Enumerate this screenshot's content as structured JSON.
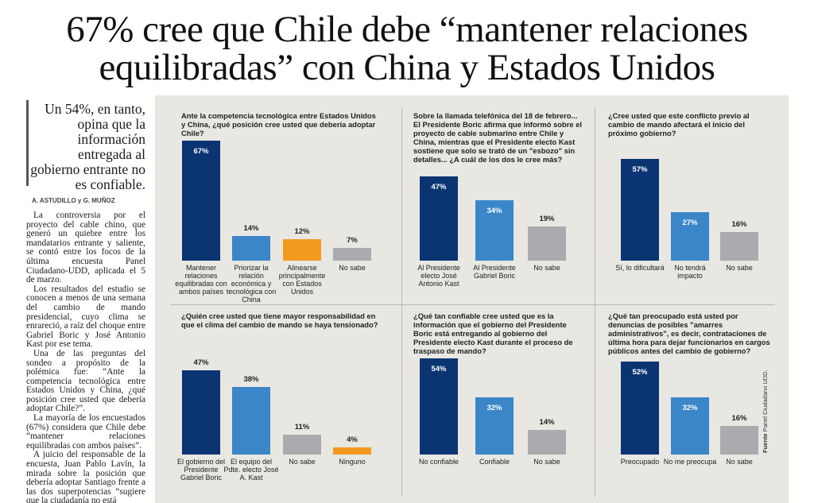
{
  "headline": [
    "67% cree que Chile debe “mantener relaciones",
    "equilibradas” con China y Estados Unidos"
  ],
  "article": {
    "dek": "Un 54%, en tanto, opina que la información entregada al gobierno entrante no es confiable.",
    "byline": "A. ASTUDILLO y G. MUÑOZ",
    "paragraphs": [
      "La controversia por el proyecto del cable chino, que generó un quiebre entre los mandatarios entrante y saliente, se contó entre los focos de la última encuesta Panel Ciudadano-UDD, aplicada el 5 de marzo.",
      "Los resultados del estudio se conocen a menos de una semana del cambio de mando presidencial, cuyo clima se enrareció, a raíz del choque entre Gabriel Boric y José Antonio Kast por ese tema.",
      "Una de las preguntas del sondeo a propósito de la polémica fue: “Ante la competencia tecnológica entre Estados Unidos y China, ¿qué posición cree usted que debería adoptar Chile?”.",
      "La mayoría de los encuestados (67%) considera que Chile debe “mantener relaciones equilibradas con ambos países”.",
      "A juicio del responsable de la encuesta, Juan Pablo Lavín, la mirada sobre la posición que debería adoptar Santiago frente a las dos superpotencias “sugiere que la ciudadanía no está"
    ]
  },
  "source": {
    "label": "Fuente",
    "text": "Panel Ciudadano UDD."
  },
  "chart_data": [
    {
      "type": "bar",
      "title": "Ante la competencia tecnológica entre Estados Unidos y China, ¿qué posición cree usted que debería adoptar Chile?",
      "categories": [
        "Mantener relaciones equilibradas con ambos países",
        "Priorizar la relación económica y tecnológica con China",
        "Alinearse principalmente con Estados Unidos",
        "No sabe"
      ],
      "values": [
        67,
        14,
        12,
        7
      ],
      "value_labels": [
        "67%",
        "14%",
        "12%",
        "7%"
      ],
      "colors": [
        "#0b3473",
        "#3b86c8",
        "#f39a1e",
        "#a9abae"
      ]
    },
    {
      "type": "bar",
      "title": "Sobre la llamada telefónica del 18 de febrero... El Presidente Boric afirma que informó sobre el proyecto de cable submarino entre Chile y China, mientras que el Presidente electo Kast sostiene que solo se trató de un \"esbozo\" sin detalles... ¿A cuál de los dos le cree más?",
      "categories": [
        "Al Presidente electo José Antonio Kast",
        "Al Presidente Gabriel Boric",
        "No sabe"
      ],
      "values": [
        47,
        34,
        19
      ],
      "value_labels": [
        "47%",
        "34%",
        "19%"
      ],
      "colors": [
        "#0b3473",
        "#3b86c8",
        "#a9abae"
      ]
    },
    {
      "type": "bar",
      "title": "¿Cree usted que este conflicto previo al cambio de mando afectará el inicio del próximo gobierno?",
      "categories": [
        "Sí, lo dificultará",
        "No tendrá impacto",
        "No sabe"
      ],
      "values": [
        57,
        27,
        16
      ],
      "value_labels": [
        "57%",
        "27%",
        "16%"
      ],
      "colors": [
        "#0b3473",
        "#3b86c8",
        "#a9abae"
      ]
    },
    {
      "type": "bar",
      "title": "¿Quién cree usted que tiene mayor responsabilidad en que el clima del cambio de mando se haya tensionado?",
      "categories": [
        "El gobierno del Presidente Gabriel Boric",
        "El equipo del Pdte. electo José A. Kast",
        "No sabe",
        "Ninguno"
      ],
      "values": [
        47,
        38,
        11,
        4
      ],
      "value_labels": [
        "47%",
        "38%",
        "11%",
        "4%"
      ],
      "colors": [
        "#0b3473",
        "#3b86c8",
        "#a9abae",
        "#f39a1e"
      ],
      "label_position": "above"
    },
    {
      "type": "bar",
      "title": "¿Qué tan confiable cree usted que es la información que el gobierno del Presidente Boric está entregando al gobierno del Presidente electo Kast durante el proceso de traspaso de mando?",
      "categories": [
        "No confiable",
        "Confiable",
        "No sabe"
      ],
      "values": [
        54,
        32,
        14
      ],
      "value_labels": [
        "54%",
        "32%",
        "14%"
      ],
      "colors": [
        "#0b3473",
        "#3b86c8",
        "#a9abae"
      ]
    },
    {
      "type": "bar",
      "title": "¿Qué tan preocupado está usted por denuncias de posibles \"amarres administrativos\", es decir, contrataciones de última hora para dejar funcionarios en cargos públicos antes del cambio de gobierno?",
      "categories": [
        "Preocupado",
        "No me preocupa",
        "No sabe"
      ],
      "values": [
        52,
        32,
        16
      ],
      "value_labels": [
        "52%",
        "32%",
        "16%"
      ],
      "colors": [
        "#0b3473",
        "#3b86c8",
        "#a9abae"
      ]
    }
  ]
}
